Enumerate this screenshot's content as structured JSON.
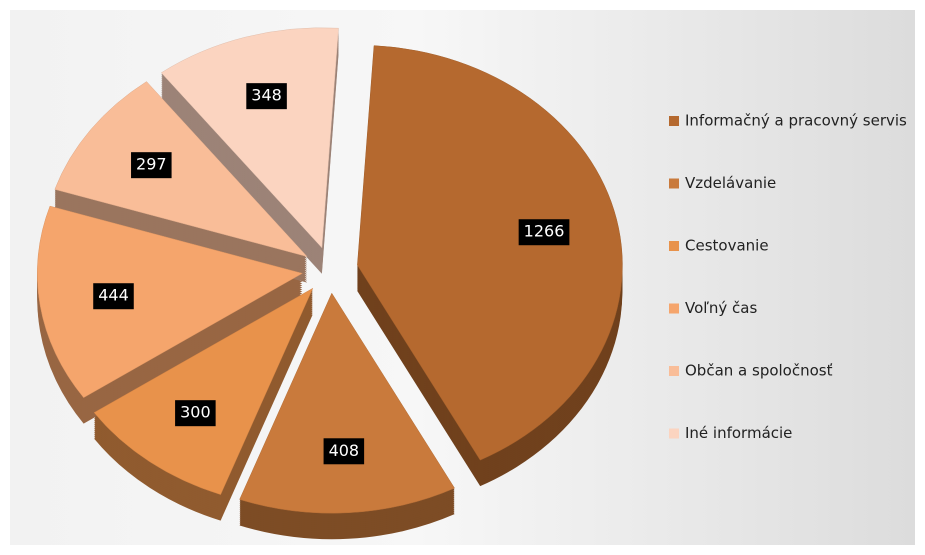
{
  "chart_data": {
    "type": "pie",
    "categories": [
      "Informačný a pracovný servis",
      "Vzdelávanie",
      "Cestovanie",
      "Voľný čas",
      "Občan a spoločnosť",
      "Iné informácie"
    ],
    "values": [
      1266,
      408,
      300,
      444,
      297,
      348
    ],
    "colors": [
      "#b5692f",
      "#c97a3c",
      "#e8924b",
      "#f5a56c",
      "#f9bd98",
      "#fbd4c0"
    ],
    "legend": "right"
  }
}
